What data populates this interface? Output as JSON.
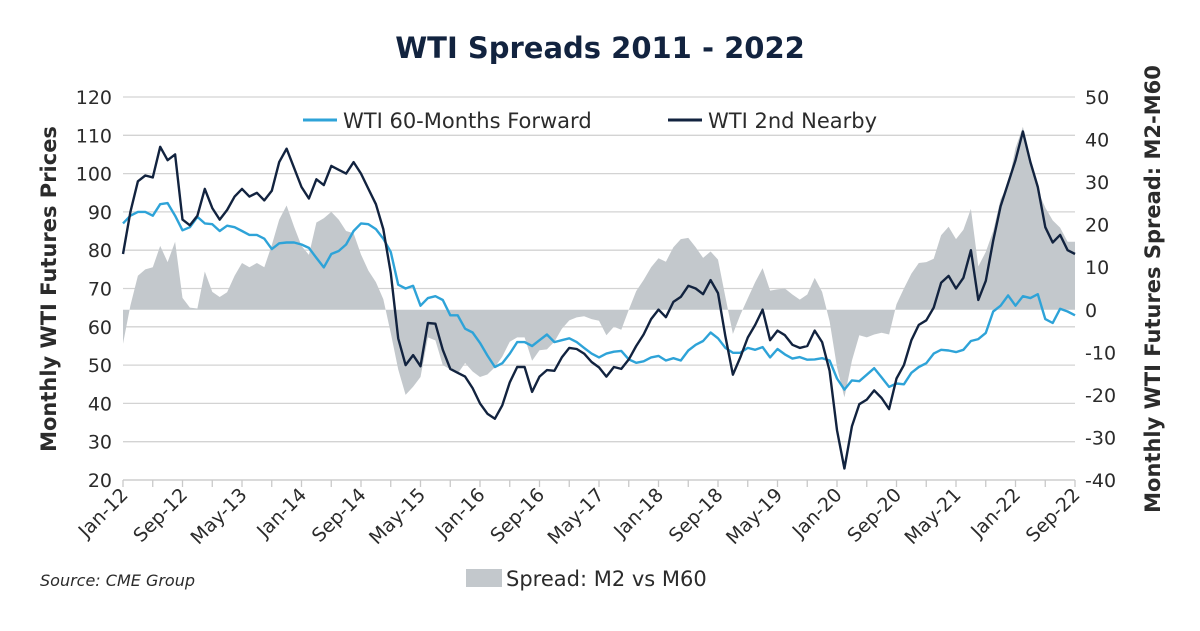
{
  "chart_data": {
    "type": "line",
    "title": "WTI Spreads 2011 - 2022",
    "ylabel": "Monthly WTI Futures Prices",
    "y2label": "Monthly WTI Futures Spread: M2-M60",
    "ylim": [
      20,
      120
    ],
    "y2lim": [
      -40,
      50
    ],
    "yticks": [
      "20",
      "30",
      "40",
      "50",
      "60",
      "70",
      "80",
      "90",
      "100",
      "110",
      "120"
    ],
    "y2ticks": [
      "-40",
      "-30",
      "-20",
      "-10",
      "0",
      "10",
      "20",
      "30",
      "40",
      "50"
    ],
    "x_start": "Jan-12",
    "x_end": "Sep-22",
    "x_frequency": "monthly",
    "xticks": [
      "Jan-12",
      "Sep-12",
      "May-13",
      "Jan-14",
      "Sep-14",
      "May-15",
      "Jan-16",
      "Sep-16",
      "May-17",
      "Jan-18",
      "Sep-18",
      "May-19",
      "Jan-20",
      "Sep-20",
      "May-21",
      "Jan-22",
      "Sep-22"
    ],
    "grid": true,
    "legend_position": "top",
    "source": "Source: CME Group",
    "colors": {
      "m60": "#2ea3d8",
      "m2": "#12233f",
      "spread": "#c3c8cc",
      "title": "#12233f"
    },
    "series": [
      {
        "name": "WTI 60-Months Forward",
        "axis": "left",
        "values": [
          87,
          89,
          90,
          90,
          89,
          92,
          92.3,
          89,
          85.2,
          86,
          88.7,
          87,
          86.8,
          85,
          86.4,
          86,
          85,
          84,
          84,
          83,
          80.3,
          81.8,
          82,
          82,
          81.5,
          80.6,
          78,
          75.5,
          79,
          79.8,
          81.5,
          85,
          87,
          86.8,
          85.5,
          83,
          79.5,
          71,
          70,
          70.7,
          65.5,
          67.5,
          68,
          67,
          63,
          63,
          59.5,
          58.5,
          55.8,
          52.5,
          49.5,
          50.5,
          53,
          56,
          56,
          55,
          56.5,
          58,
          56,
          56.5,
          57,
          56,
          54.5,
          53,
          52,
          53,
          53.5,
          53.7,
          51.5,
          50.6,
          51,
          52,
          52.4,
          51.2,
          51.8,
          51.2,
          53.8,
          55.3,
          56.3,
          58.5,
          57,
          54.5,
          53.2,
          53.2,
          54.5,
          54,
          54.7,
          52,
          54.2,
          52.8,
          51.7,
          52.1,
          51.4,
          51.5,
          51.8,
          51.2,
          46.5,
          43.6,
          46,
          45.8,
          47.5,
          49.2,
          46.8,
          44.3,
          45.2,
          45,
          48,
          49.5,
          50.5,
          53,
          54,
          53.8,
          53.4,
          54,
          56.3,
          56.8,
          58.4,
          64,
          65.5,
          68.2,
          65.5,
          68,
          67.5,
          68.5,
          62,
          61,
          64.7,
          64,
          63
        ]
      },
      {
        "name": "WTI 2nd Nearby",
        "axis": "left",
        "values": [
          79,
          90,
          98,
          99.5,
          99,
          107,
          103.5,
          105,
          88,
          86.5,
          89,
          96,
          91,
          88,
          90.5,
          94,
          96,
          94,
          95,
          93,
          95.5,
          103,
          106.5,
          101.5,
          96.5,
          93.5,
          98.5,
          97,
          102,
          101,
          100,
          103,
          100,
          96,
          92,
          85.5,
          74,
          57,
          50,
          52.6,
          49.7,
          61,
          60.8,
          54,
          49,
          48,
          47,
          44,
          40,
          37.3,
          36,
          39.5,
          45.5,
          49.5,
          49.5,
          43,
          47,
          48.7,
          48.5,
          52,
          54.5,
          54.2,
          53,
          50.8,
          49.4,
          47,
          49.5,
          49,
          51.5,
          55,
          58,
          62,
          64.5,
          62.5,
          66.5,
          67.8,
          70.7,
          70,
          68.5,
          72.2,
          68.8,
          57.5,
          47.5,
          52,
          57.2,
          60.5,
          64.5,
          56.5,
          59,
          57.8,
          55.3,
          54.5,
          55,
          59,
          56,
          48.5,
          33,
          23,
          34,
          39.8,
          41,
          43.4,
          41.4,
          38.5,
          46.5,
          50,
          56.5,
          60.5,
          61.7,
          65,
          71.5,
          73.3,
          70,
          72.8,
          80,
          67,
          72,
          82.5,
          91.5,
          97.5,
          103.5,
          111,
          103,
          96.5,
          86,
          82,
          84,
          80,
          79
        ]
      },
      {
        "name": "Spread: M2 vs M60",
        "axis": "right",
        "values": [
          -8,
          1,
          8,
          9.5,
          10,
          15,
          11.2,
          16,
          2.8,
          0.5,
          0.3,
          9,
          4.2,
          3,
          4.1,
          8,
          11,
          10,
          11,
          10,
          15.2,
          21.2,
          24.5,
          19.5,
          15,
          12.9,
          20.5,
          21.5,
          23,
          21.2,
          18.5,
          18,
          13,
          9.2,
          6.5,
          2.5,
          -5.5,
          -14,
          -20,
          -18.1,
          -15.8,
          -6.5,
          -7.2,
          -13,
          -14,
          -15,
          -12.5,
          -14.5,
          -15.8,
          -15.2,
          -13.5,
          -11,
          -7.5,
          -6.5,
          -6.5,
          -12,
          -9.5,
          -9.3,
          -7.5,
          -4.5,
          -2.5,
          -1.8,
          -1.5,
          -2.2,
          -2.6,
          -6,
          -4,
          -4.7,
          0,
          4.4,
          7,
          10,
          12.1,
          11.3,
          14.7,
          16.6,
          16.9,
          14.7,
          12.2,
          13.7,
          11.8,
          3,
          -5.7,
          -1.2,
          2.7,
          6.5,
          9.8,
          4.5,
          4.8,
          5,
          3.6,
          2.4,
          3.6,
          7.5,
          4.2,
          -2.7,
          -13.5,
          -20.6,
          -12,
          -6,
          -6.5,
          -5.8,
          -5.4,
          -5.8,
          1.3,
          5,
          8.5,
          11,
          11.2,
          12,
          17.5,
          19.5,
          16.6,
          18.8,
          23.7,
          10.2,
          13.6,
          18.5,
          26,
          29.3,
          38,
          43,
          35.5,
          28,
          24,
          21,
          19.3,
          16,
          16
        ]
      }
    ]
  }
}
